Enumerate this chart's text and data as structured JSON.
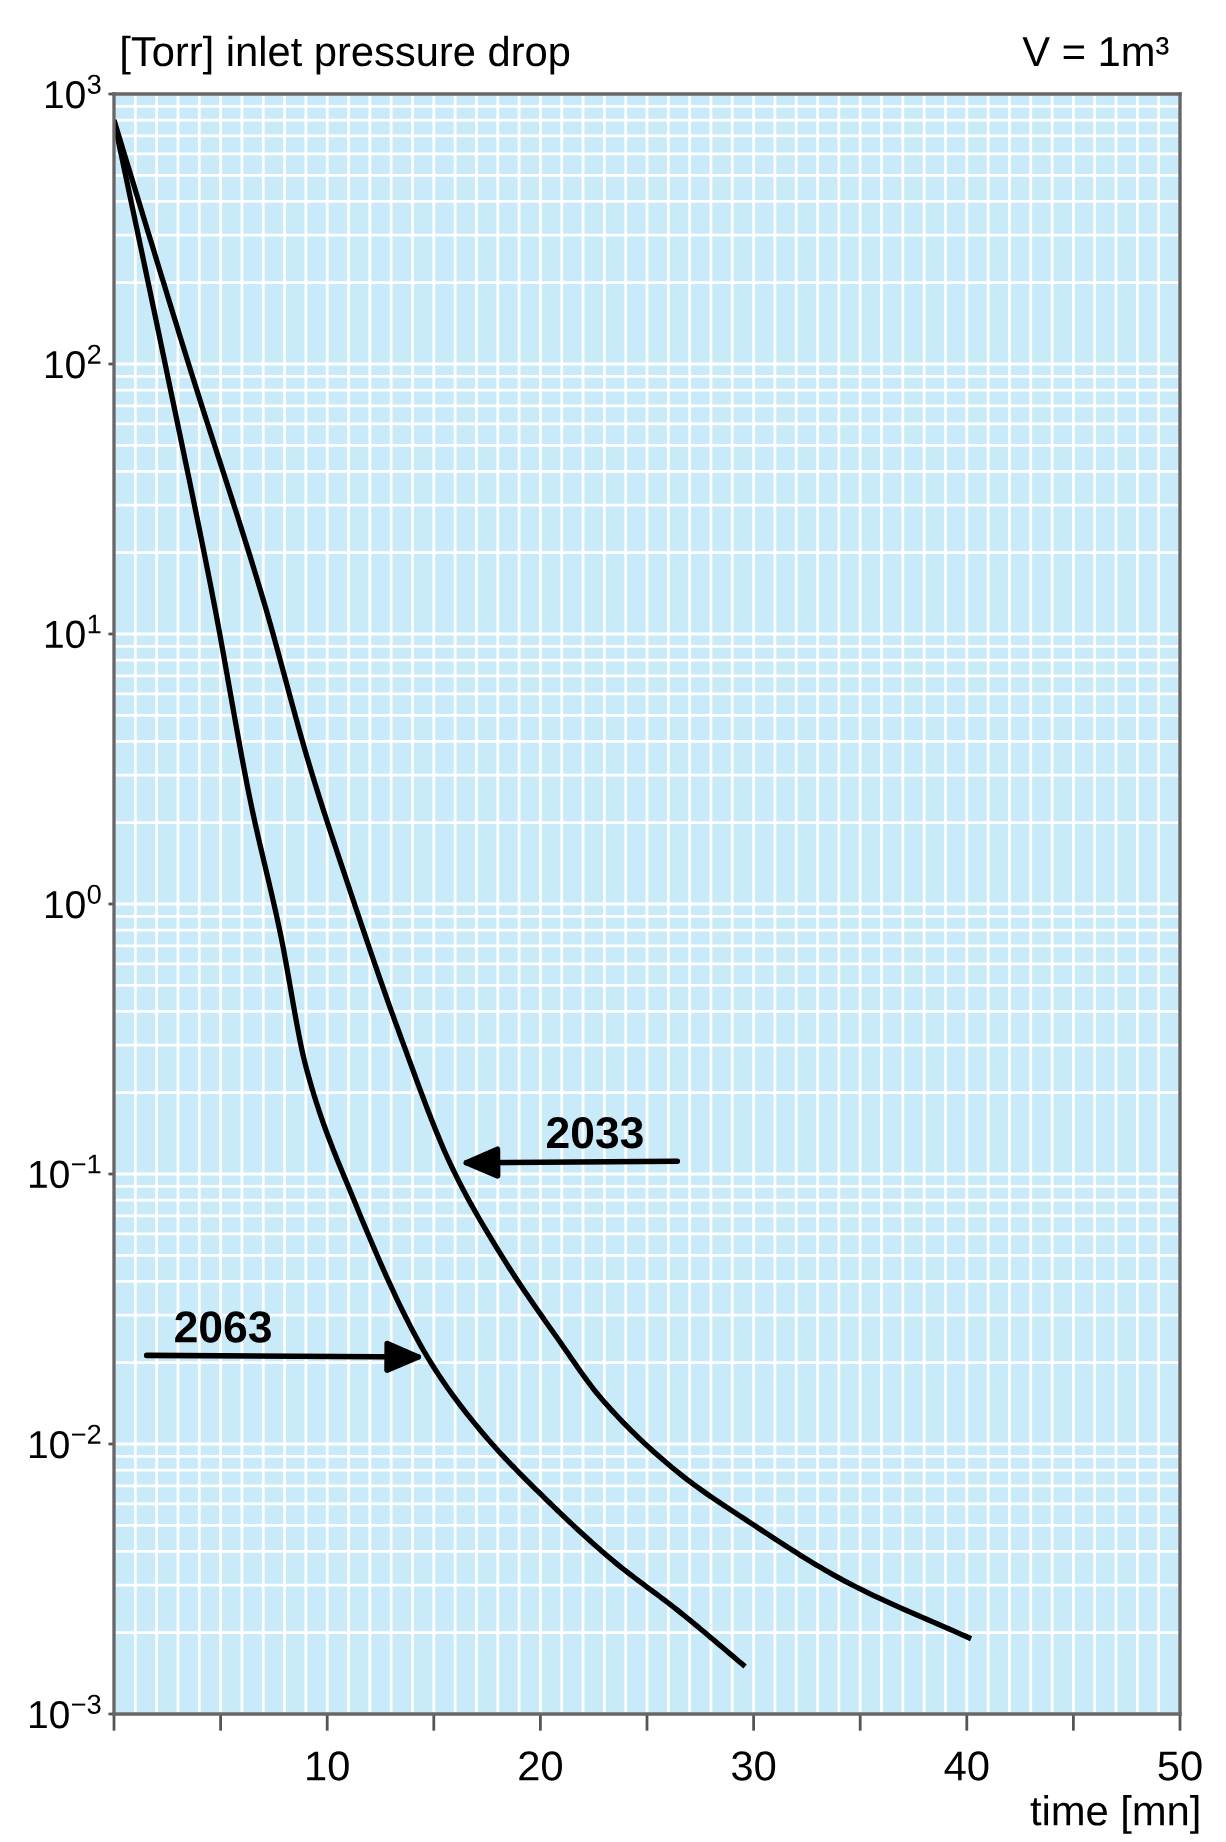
{
  "chart_data": {
    "type": "line",
    "ylabel": "[Torr] inlet pressure drop",
    "xlabel": "time [mn]",
    "annotations": [
      "V = 1m³",
      {
        "text": "2033",
        "x": 16.2,
        "y": 0.11
      },
      {
        "text": "2063",
        "x": 14.6,
        "y": 0.021
      }
    ],
    "series": [
      {
        "color": "#000000",
        "x": [
          0,
          3.5,
          7.0,
          9.2,
          10.9,
          13.4,
          15.8,
          18.1,
          20.9,
          22.9,
          26.5,
          29.7,
          34.3,
          40.2
        ],
        "values": [
          800,
          100,
          13.4,
          3.2,
          1.23,
          0.33,
          0.108,
          0.051,
          0.024,
          0.0146,
          0.0078,
          0.0052,
          0.0031,
          0.0019
        ]
      },
      {
        "color": "#000000",
        "x": [
          0,
          2.4,
          4.66,
          6.4,
          7.8,
          9.0,
          11.2,
          14.7,
          17.2,
          20.3,
          23.4,
          26.5,
          29.6
        ],
        "values": [
          800,
          100,
          13.4,
          2.4,
          0.78,
          0.25,
          0.082,
          0.021,
          0.0112,
          0.0062,
          0.0037,
          0.0024,
          0.0015
        ]
      }
    ],
    "xlim": [
      0,
      50
    ],
    "ylim": [
      0.001,
      1000
    ],
    "xticks": [
      {
        "value": 0,
        "label": null
      },
      {
        "value": 5,
        "label": null
      },
      10,
      {
        "value": 15,
        "label": null
      },
      20,
      {
        "value": 25,
        "label": null
      },
      30,
      {
        "value": 35,
        "label": null
      },
      40,
      {
        "value": 45,
        "label": null
      },
      50
    ],
    "yticks": [
      {
        "value": 0.001,
        "label": "10$^{−3}$"
      },
      {
        "value": 0.01,
        "label": "10$^{−2}$"
      },
      {
        "value": 0.1,
        "label": "10$^{−1}$"
      },
      {
        "value": 1,
        "label": "10$^{0}$"
      },
      {
        "value": 10,
        "label": "10$^{1}$"
      },
      {
        "value": 100,
        "label": "10$^{2}$"
      },
      {
        "value": 1000,
        "label": "10$^{3}$"
      }
    ],
    "log": "y",
    "grid": true
  }
}
